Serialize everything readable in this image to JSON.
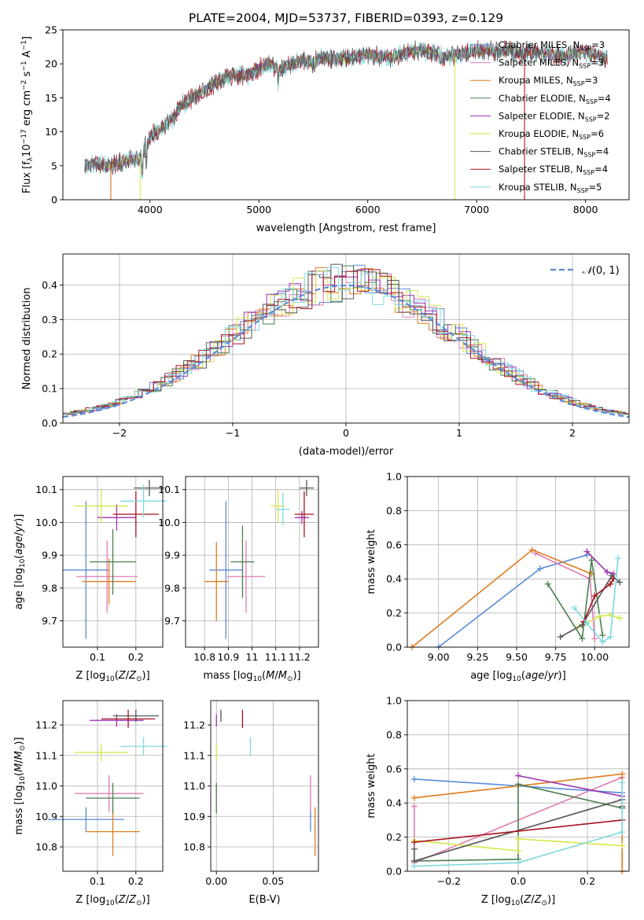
{
  "title": "PLATE=2004, MJD=53737, FIBERID=0393, z=0.129",
  "colors": {
    "Chabrier MILES": "#5b8bd8",
    "Salpeter MILES": "#e07bb0",
    "Kroupa MILES": "#e07b1e",
    "Chabrier ELODIE": "#4a7d50",
    "Salpeter ELODIE": "#9b30b0",
    "Kroupa ELODIE": "#d6e64a",
    "Chabrier STELIB": "#555555",
    "Salpeter STELIB": "#a8141e",
    "Kroupa STELIB": "#7ed8e0"
  },
  "chart_data": [
    {
      "id": "spectrum",
      "type": "line",
      "title": "PLATE=2004, MJD=53737, FIBERID=0393, z=0.129",
      "xlabel": "wavelength [Angstrom, rest frame]",
      "ylabel": "Flux [f_λ 10^-17 erg cm^-2 s^-1 A^-1]",
      "xlim": [
        3200,
        8400
      ],
      "ylim": [
        0,
        25
      ],
      "xticks": [
        4000,
        5000,
        6000,
        7000,
        8000
      ],
      "yticks": [
        0,
        5,
        10,
        15,
        20,
        25
      ],
      "grid": false,
      "legend_position": "top-right",
      "legend": [
        "Chabrier MILES, N_SSP=3",
        "Salpeter MILES, N_SSP=3",
        "Kroupa MILES, N_SSP=3",
        "Chabrier ELODIE, N_SSP=4",
        "Salpeter ELODIE, N_SSP=2",
        "Kroupa ELODIE, N_SSP=6",
        "Chabrier STELIB, N_SSP=4",
        "Salpeter STELIB, N_SSP=4",
        "Kroupa STELIB, N_SSP=5"
      ],
      "legend_names": [
        "Chabrier MILES",
        "Salpeter MILES",
        "Kroupa MILES",
        "Chabrier ELODIE",
        "Salpeter ELODIE",
        "Kroupa ELODIE",
        "Chabrier STELIB",
        "Salpeter STELIB",
        "Kroupa STELIB"
      ],
      "legend_nssp": [
        "3",
        "3",
        "3",
        "4",
        "2",
        "6",
        "4",
        "4",
        "5"
      ],
      "envelope": {
        "x": [
          3400,
          3500,
          3600,
          3700,
          3800,
          3900,
          4000,
          4100,
          4200,
          4300,
          4400,
          4500,
          4600,
          4700,
          4800,
          4900,
          5000,
          5100,
          5200,
          5300,
          5400,
          5500,
          5600,
          5700,
          5800,
          5900,
          6000,
          6100,
          6200,
          6300,
          6400,
          6500,
          6600,
          6700,
          6800,
          6900,
          7000,
          7100,
          7200,
          7300,
          7400,
          7500,
          7600,
          7700,
          7800,
          7900,
          8000,
          8100,
          8200
        ],
        "y": [
          5.0,
          5.3,
          4.9,
          5.5,
          5.8,
          6.0,
          9.2,
          10.5,
          11.8,
          14.0,
          15.2,
          16.0,
          17.2,
          18.0,
          18.4,
          18.3,
          19.4,
          19.8,
          19.2,
          20.0,
          20.4,
          20.2,
          21.0,
          20.6,
          20.8,
          21.0,
          21.4,
          21.2,
          21.0,
          21.4,
          21.8,
          22.0,
          21.6,
          21.0,
          21.3,
          21.6,
          21.9,
          22.0,
          21.8,
          22.0,
          21.4,
          21.8,
          21.6,
          21.4,
          21.0,
          21.5,
          21.7,
          21.2,
          20.8
        ]
      }
    },
    {
      "id": "residuals",
      "type": "histogram",
      "xlabel": "(data-model)/error",
      "ylabel": "Normed distribution",
      "xlim": [
        -2.5,
        2.5
      ],
      "ylim": [
        0,
        0.49
      ],
      "xticks": [
        -2,
        -1,
        0,
        1,
        2
      ],
      "yticks": [
        0.0,
        0.1,
        0.2,
        0.3,
        0.4
      ],
      "grid": true,
      "legend_position": "top-right",
      "reference_curve": "N(0,1)",
      "bin_width": 0.1
    },
    {
      "id": "age-vs-Z",
      "type": "errorbar",
      "xlabel": "Z [log10(Z/Z_sun)]",
      "ylabel": "age [log10(age/yr)]",
      "xlim": [
        0.01,
        0.27
      ],
      "ylim": [
        9.62,
        10.14
      ],
      "xticks": [
        0.1,
        0.2
      ],
      "yticks": [
        9.7,
        9.8,
        9.9,
        10.0,
        10.1
      ],
      "grid": true,
      "points": [
        {
          "model": "Chabrier MILES",
          "x": 0.07,
          "xerr": 0.06,
          "y": 9.855,
          "yerr": 0.21
        },
        {
          "model": "Salpeter MILES",
          "x": 0.125,
          "xerr": 0.08,
          "y": 9.835,
          "yerr": 0.11
        },
        {
          "model": "Kroupa MILES",
          "x": 0.13,
          "xerr": 0.07,
          "y": 9.82,
          "yerr": 0.07
        },
        {
          "model": "Chabrier ELODIE",
          "x": 0.14,
          "xerr": 0.06,
          "y": 9.88,
          "yerr": 0.1
        },
        {
          "model": "Salpeter ELODIE",
          "x": 0.15,
          "xerr": 0.05,
          "y": 10.015,
          "yerr": 0.04
        },
        {
          "model": "Kroupa ELODIE",
          "x": 0.11,
          "xerr": 0.07,
          "y": 10.05,
          "yerr": 0.05
        },
        {
          "model": "Chabrier STELIB",
          "x": 0.235,
          "xerr": 0.04,
          "y": 10.105,
          "yerr": 0.025
        },
        {
          "model": "Salpeter STELIB",
          "x": 0.2,
          "xerr": 0.06,
          "y": 10.025,
          "yerr": 0.07
        },
        {
          "model": "Kroupa STELIB",
          "x": 0.22,
          "xerr": 0.06,
          "y": 10.065,
          "yerr": 0.05
        }
      ]
    },
    {
      "id": "age-vs-mass",
      "type": "errorbar",
      "xlabel": "mass [log10(M/M_sun)]",
      "ylabel": "",
      "xlim": [
        10.72,
        11.28
      ],
      "ylim": [
        9.62,
        10.14
      ],
      "xticks": [
        10.8,
        10.9,
        11.0,
        11.1,
        11.2
      ],
      "yticks": [
        9.7,
        9.8,
        9.9,
        10.0,
        10.1
      ],
      "grid": true,
      "points": [
        {
          "model": "Chabrier MILES",
          "x": 10.89,
          "xerr": 0.07,
          "y": 9.855,
          "yerr": 0.21
        },
        {
          "model": "Salpeter MILES",
          "x": 10.975,
          "xerr": 0.08,
          "y": 9.835,
          "yerr": 0.11
        },
        {
          "model": "Kroupa MILES",
          "x": 10.85,
          "xerr": 0.05,
          "y": 9.82,
          "yerr": 0.12
        },
        {
          "model": "Chabrier ELODIE",
          "x": 10.96,
          "xerr": 0.05,
          "y": 9.88,
          "yerr": 0.11
        },
        {
          "model": "Salpeter ELODIE",
          "x": 11.21,
          "xerr": 0.03,
          "y": 10.015,
          "yerr": 0.02
        },
        {
          "model": "Kroupa ELODIE",
          "x": 11.11,
          "xerr": 0.03,
          "y": 10.05,
          "yerr": 0.05
        },
        {
          "model": "Chabrier STELIB",
          "x": 11.23,
          "xerr": 0.03,
          "y": 10.105,
          "yerr": 0.025
        },
        {
          "model": "Salpeter STELIB",
          "x": 11.22,
          "xerr": 0.04,
          "y": 10.025,
          "yerr": 0.07
        },
        {
          "model": "Kroupa STELIB",
          "x": 11.13,
          "xerr": 0.03,
          "y": 10.04,
          "yerr": 0.05
        }
      ]
    },
    {
      "id": "weight-vs-age",
      "type": "line",
      "xlabel": "age [log10(age/yr)]",
      "ylabel": "mass weight",
      "xlim": [
        8.8,
        10.22
      ],
      "ylim": [
        0.0,
        1.0
      ],
      "xticks": [
        9.0,
        9.25,
        9.5,
        9.75,
        10.0
      ],
      "yticks": [
        0.0,
        0.2,
        0.4,
        0.6,
        0.8,
        1.0
      ],
      "grid": true,
      "series": [
        {
          "model": "Chabrier MILES",
          "x": [
            9.0,
            9.65,
            9.95
          ],
          "y": [
            0.0,
            0.46,
            0.54
          ]
        },
        {
          "model": "Salpeter MILES",
          "x": [
            9.62,
            9.97,
            10.0
          ],
          "y": [
            0.55,
            0.4,
            0.05
          ]
        },
        {
          "model": "Kroupa MILES",
          "x": [
            8.83,
            9.6,
            9.98
          ],
          "y": [
            0.0,
            0.57,
            0.43
          ]
        },
        {
          "model": "Chabrier ELODIE",
          "x": [
            9.7,
            9.92,
            9.98,
            10.05
          ],
          "y": [
            0.37,
            0.05,
            0.51,
            0.07
          ]
        },
        {
          "model": "Salpeter ELODIE",
          "x": [
            9.95,
            10.08,
            10.12
          ],
          "y": [
            0.56,
            0.44,
            0.43
          ]
        },
        {
          "model": "Kroupa ELODIE",
          "x": [
            9.9,
            10.03,
            10.1,
            10.16
          ],
          "y": [
            0.12,
            0.18,
            0.19,
            0.17
          ]
        },
        {
          "model": "Chabrier STELIB",
          "x": [
            9.78,
            9.92,
            10.11,
            10.16
          ],
          "y": [
            0.06,
            0.13,
            0.42,
            0.38
          ]
        },
        {
          "model": "Salpeter STELIB",
          "x": [
            9.93,
            10.0,
            10.1,
            10.12
          ],
          "y": [
            0.15,
            0.3,
            0.37,
            0.4
          ]
        },
        {
          "model": "Kroupa STELIB",
          "x": [
            9.87,
            9.95,
            10.05,
            10.1,
            10.15
          ],
          "y": [
            0.23,
            0.14,
            0.03,
            0.06,
            0.52
          ]
        }
      ]
    },
    {
      "id": "mass-vs-Z",
      "type": "errorbar",
      "xlabel": "Z [log10(Z/Z_sun)]",
      "ylabel": "mass [log10(M/M_sun)]",
      "xlim": [
        0.01,
        0.27
      ],
      "ylim": [
        10.72,
        11.28
      ],
      "xticks": [
        0.1,
        0.2
      ],
      "yticks": [
        10.8,
        10.9,
        11.0,
        11.1,
        11.2
      ],
      "grid": true,
      "points": [
        {
          "model": "Chabrier MILES",
          "x": 0.07,
          "xerr": 0.1,
          "y": 10.89,
          "yerr": 0.04
        },
        {
          "model": "Salpeter MILES",
          "x": 0.13,
          "xerr": 0.09,
          "y": 10.975,
          "yerr": 0.06
        },
        {
          "model": "Kroupa MILES",
          "x": 0.14,
          "xerr": 0.07,
          "y": 10.85,
          "yerr": 0.08
        },
        {
          "model": "Chabrier ELODIE",
          "x": 0.14,
          "xerr": 0.07,
          "y": 10.96,
          "yerr": 0.05
        },
        {
          "model": "Salpeter ELODIE",
          "x": 0.15,
          "xerr": 0.07,
          "y": 11.215,
          "yerr": 0.02
        },
        {
          "model": "Kroupa ELODIE",
          "x": 0.11,
          "xerr": 0.07,
          "y": 11.11,
          "yerr": 0.03
        },
        {
          "model": "Chabrier STELIB",
          "x": 0.2,
          "xerr": 0.06,
          "y": 11.23,
          "yerr": 0.02
        },
        {
          "model": "Salpeter STELIB",
          "x": 0.18,
          "xerr": 0.07,
          "y": 11.22,
          "yerr": 0.03
        },
        {
          "model": "Kroupa STELIB",
          "x": 0.22,
          "xerr": 0.06,
          "y": 11.13,
          "yerr": 0.03
        }
      ]
    },
    {
      "id": "mass-vs-ebv",
      "type": "errorbar",
      "xlabel": "E(B-V)",
      "ylabel": "",
      "xlim": [
        -0.005,
        0.09
      ],
      "ylim": [
        10.72,
        11.28
      ],
      "xticks": [
        0.0,
        0.05
      ],
      "yticks": [
        10.8,
        10.9,
        11.0,
        11.1,
        11.2
      ],
      "grid": true,
      "points": [
        {
          "model": "Chabrier MILES",
          "x": 0.083,
          "xerr": 0.0,
          "y": 10.89,
          "yerr": 0.04
        },
        {
          "model": "Salpeter MILES",
          "x": 0.083,
          "xerr": 0.0,
          "y": 10.975,
          "yerr": 0.06
        },
        {
          "model": "Kroupa MILES",
          "x": 0.087,
          "xerr": 0.0,
          "y": 10.85,
          "yerr": 0.08
        },
        {
          "model": "Chabrier ELODIE",
          "x": 0.0,
          "xerr": 0.0,
          "y": 10.96,
          "yerr": 0.05
        },
        {
          "model": "Salpeter ELODIE",
          "x": 0.0,
          "xerr": 0.0,
          "y": 11.215,
          "yerr": 0.02
        },
        {
          "model": "Kroupa ELODIE",
          "x": 0.0,
          "xerr": 0.0,
          "y": 11.11,
          "yerr": 0.03
        },
        {
          "model": "Chabrier STELIB",
          "x": 0.004,
          "xerr": 0.0,
          "y": 11.23,
          "yerr": 0.02
        },
        {
          "model": "Salpeter STELIB",
          "x": 0.023,
          "xerr": 0.0,
          "y": 11.22,
          "yerr": 0.03
        },
        {
          "model": "Kroupa STELIB",
          "x": 0.03,
          "xerr": 0.0,
          "y": 11.13,
          "yerr": 0.03
        }
      ]
    },
    {
      "id": "weight-vs-Z",
      "type": "line",
      "xlabel": "Z [log10(Z/Z_sun)]",
      "ylabel": "mass weight",
      "xlim": [
        -0.32,
        0.32
      ],
      "ylim": [
        0.0,
        1.0
      ],
      "xticks": [
        -0.2,
        0.0,
        0.2
      ],
      "yticks": [
        0.0,
        0.2,
        0.4,
        0.6,
        0.8,
        1.0
      ],
      "grid": true,
      "series": [
        {
          "model": "Chabrier MILES",
          "x": [
            -0.3,
            0.3
          ],
          "y": [
            0.54,
            0.46
          ]
        },
        {
          "model": "Salpeter MILES",
          "x": [
            -0.3,
            -0.3,
            0.3
          ],
          "y": [
            0.38,
            0.05,
            0.55
          ]
        },
        {
          "model": "Kroupa MILES",
          "x": [
            -0.3,
            0.3,
            0.3
          ],
          "y": [
            0.43,
            0.57,
            0.0
          ]
        },
        {
          "model": "Chabrier ELODIE",
          "x": [
            -0.3,
            0.0,
            0.0,
            0.3
          ],
          "y": [
            0.06,
            0.07,
            0.51,
            0.37
          ]
        },
        {
          "model": "Salpeter ELODIE",
          "x": [
            0.0,
            0.3
          ],
          "y": [
            0.56,
            0.44
          ]
        },
        {
          "model": "Kroupa ELODIE",
          "x": [
            -0.3,
            0.0,
            0.0,
            0.3
          ],
          "y": [
            0.18,
            0.12,
            0.19,
            0.15
          ]
        },
        {
          "model": "Chabrier STELIB",
          "x": [
            -0.3,
            -0.3,
            0.3,
            0.3
          ],
          "y": [
            0.13,
            0.06,
            0.42,
            0.38
          ]
        },
        {
          "model": "Salpeter STELIB",
          "x": [
            -0.3,
            0.3
          ],
          "y": [
            0.17,
            0.3
          ]
        },
        {
          "model": "Kroupa STELIB",
          "x": [
            -0.3,
            0.0,
            0.3,
            0.3
          ],
          "y": [
            0.03,
            0.05,
            0.23,
            0.52
          ]
        }
      ]
    }
  ]
}
